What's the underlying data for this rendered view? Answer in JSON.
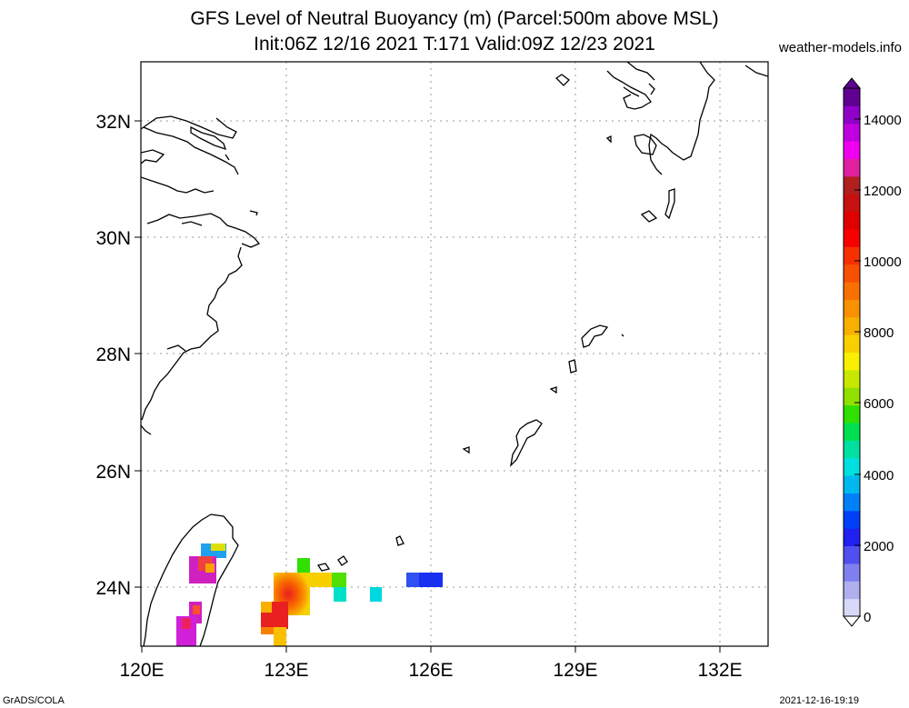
{
  "title_line1": "GFS Level of Neutral Buoyancy (m) (Parcel:500m above MSL)",
  "title_line2": "Init:06Z 12/16 2021 T:171 Valid:09Z 12/23 2021",
  "credit": "weather-models.info",
  "footer_left": "GrADS/COLA",
  "footer_right": "2021-12-16-19:19",
  "lat_labels": [
    "32N",
    "30N",
    "28N",
    "26N",
    "24N"
  ],
  "lon_labels": [
    "120E",
    "123E",
    "126E",
    "129E",
    "132E"
  ],
  "colorbar_labels": [
    "0",
    "2000",
    "4000",
    "6000",
    "8000",
    "10000",
    "12000",
    "14000"
  ],
  "colorbar_colors": [
    "#d8d8f8",
    "#b0b0f0",
    "#8080f0",
    "#5050f0",
    "#2020f0",
    "#0040f8",
    "#0080f8",
    "#00b8f0",
    "#00e0e0",
    "#00e0a0",
    "#00e050",
    "#30e000",
    "#90e000",
    "#c8e800",
    "#f8f000",
    "#f8d000",
    "#f8b000",
    "#f89000",
    "#f87000",
    "#f85000",
    "#f83000",
    "#f80000",
    "#e00000",
    "#c81010",
    "#b02020",
    "#e020a0",
    "#f000f0",
    "#c000e0",
    "#9000c8",
    "#600090"
  ]
}
